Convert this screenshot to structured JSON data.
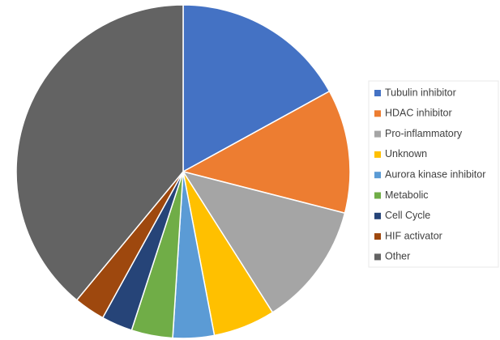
{
  "chart_data": {
    "type": "pie",
    "categories": [
      "Tubulin inhibitor",
      "HDAC inhibitor",
      "Pro-inflammatory",
      "Unknown",
      "Aurora kinase inhibitor",
      "Metabolic",
      "Cell Cycle",
      "HIF activator",
      "Other"
    ],
    "values": [
      17,
      12,
      12,
      6,
      4,
      4,
      3,
      3,
      39
    ],
    "colors": [
      "#4472c4",
      "#ed7d31",
      "#a5a5a5",
      "#ffc000",
      "#5b9bd5",
      "#70ad47",
      "#264478",
      "#9e480e",
      "#636363"
    ],
    "legend": "right"
  }
}
